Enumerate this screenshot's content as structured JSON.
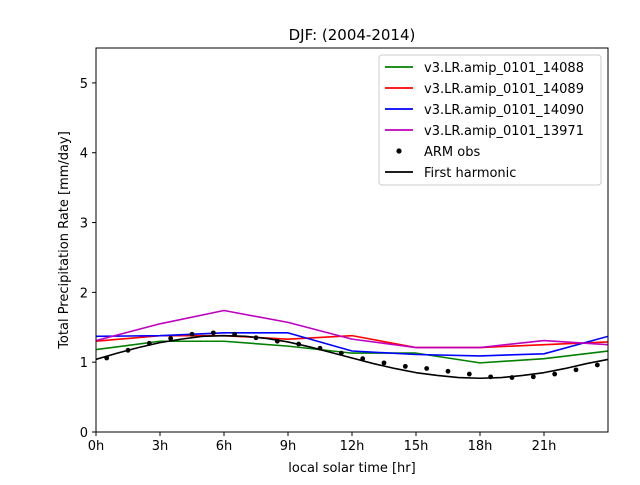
{
  "chart_data": {
    "type": "line",
    "title": "DJF: (2004-2014)",
    "xlabel": "local solar time [hr]",
    "ylabel": "Total Precipitation Rate [mm/day]",
    "xlim": [
      0,
      24
    ],
    "ylim": [
      0,
      5.5
    ],
    "xticks": [
      0,
      3,
      6,
      9,
      12,
      15,
      18,
      21
    ],
    "xtick_labels": [
      "0h",
      "3h",
      "6h",
      "9h",
      "12h",
      "15h",
      "18h",
      "21h"
    ],
    "yticks": [
      0,
      1,
      2,
      3,
      4,
      5
    ],
    "ytick_labels": [
      "0",
      "1",
      "2",
      "3",
      "4",
      "5"
    ],
    "grid": false,
    "legend_position": "top-right",
    "series": [
      {
        "name": "v3.LR.amip_0101_14088",
        "kind": "line",
        "color": "#008000",
        "x": [
          0,
          3,
          6,
          9,
          12,
          15,
          18,
          21,
          24
        ],
        "y": [
          1.18,
          1.3,
          1.3,
          1.23,
          1.13,
          1.13,
          0.99,
          1.05,
          1.16
        ]
      },
      {
        "name": "v3.LR.amip_0101_14089",
        "kind": "line",
        "color": "#ff0000",
        "x": [
          0,
          3,
          6,
          9,
          12,
          15,
          18,
          21,
          24
        ],
        "y": [
          1.3,
          1.38,
          1.38,
          1.33,
          1.38,
          1.21,
          1.21,
          1.25,
          1.29
        ]
      },
      {
        "name": "v3.LR.amip_0101_14090",
        "kind": "line",
        "color": "#0000ff",
        "x": [
          0,
          3,
          6,
          9,
          12,
          15,
          18,
          21,
          24
        ],
        "y": [
          1.37,
          1.38,
          1.42,
          1.42,
          1.16,
          1.11,
          1.09,
          1.12,
          1.37
        ]
      },
      {
        "name": "v3.LR.amip_0101_13971",
        "kind": "line",
        "color": "#bf00bf",
        "x": [
          0,
          3,
          6,
          9,
          12,
          15,
          18,
          21,
          24
        ],
        "y": [
          1.31,
          1.55,
          1.74,
          1.57,
          1.33,
          1.21,
          1.21,
          1.31,
          1.25
        ]
      },
      {
        "name": "ARM obs",
        "kind": "scatter",
        "color": "#000000",
        "x": [
          0.5,
          1.5,
          2.5,
          3.5,
          4.5,
          5.5,
          6.5,
          7.5,
          8.5,
          9.5,
          10.5,
          11.5,
          12.5,
          13.5,
          14.5,
          15.5,
          16.5,
          17.5,
          18.5,
          19.5,
          20.5,
          21.5,
          22.5,
          23.5
        ],
        "y": [
          1.06,
          1.17,
          1.27,
          1.34,
          1.4,
          1.42,
          1.4,
          1.35,
          1.3,
          1.26,
          1.2,
          1.13,
          1.05,
          0.99,
          0.94,
          0.91,
          0.87,
          0.83,
          0.79,
          0.78,
          0.79,
          0.83,
          0.89,
          0.96
        ]
      },
      {
        "name": "First harmonic",
        "kind": "line",
        "color": "#000000",
        "x": [
          0,
          1,
          2,
          3,
          4,
          5,
          6,
          7,
          8,
          9,
          10,
          11,
          12,
          13,
          14,
          15,
          16,
          17,
          18,
          19,
          20,
          21,
          22,
          23,
          24
        ],
        "y": [
          1.04,
          1.13,
          1.21,
          1.28,
          1.33,
          1.37,
          1.38,
          1.37,
          1.34,
          1.29,
          1.22,
          1.14,
          1.06,
          0.98,
          0.91,
          0.85,
          0.81,
          0.78,
          0.77,
          0.78,
          0.81,
          0.85,
          0.91,
          0.98,
          1.04
        ]
      }
    ]
  }
}
